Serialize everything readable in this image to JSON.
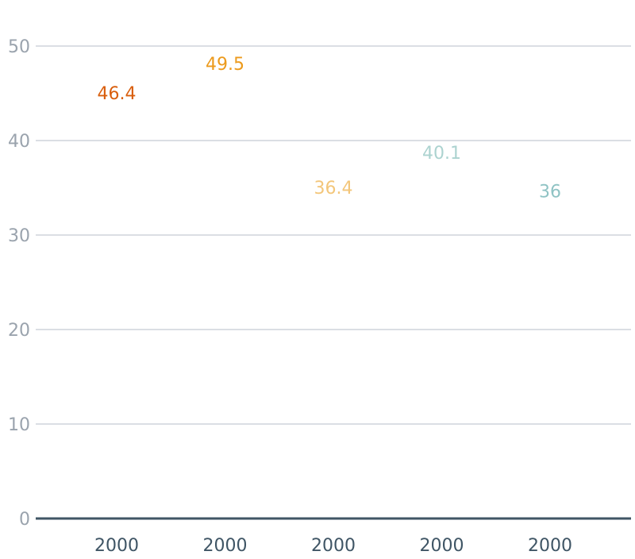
{
  "chart_data": {
    "type": "bar",
    "title": "",
    "xlabel": "",
    "ylabel": "",
    "categories": [
      "2000",
      "2000",
      "2000",
      "2000",
      "2000"
    ],
    "values": [
      46.4,
      49.5,
      36.4,
      40.1,
      36
    ],
    "value_labels": [
      "46.4",
      "49.5",
      "36.4",
      "40.1",
      "36"
    ],
    "y_ticks": [
      0,
      10,
      20,
      30,
      40,
      50
    ],
    "y_tick_labels": [
      "0",
      "10",
      "20",
      "30",
      "40",
      "50"
    ],
    "ylim": [
      0,
      50.8
    ],
    "grid": true,
    "legend": "none",
    "colors": [
      "#d95f0e",
      "#ec9a1c",
      "#f3c67a",
      "#acd3d0",
      "#8fc3c4"
    ],
    "axis_color": "#3f5565",
    "tick_label_color": "#9aa3ad",
    "category_label_color": "#3f5565",
    "gridline_color": "#c5cbd3"
  }
}
